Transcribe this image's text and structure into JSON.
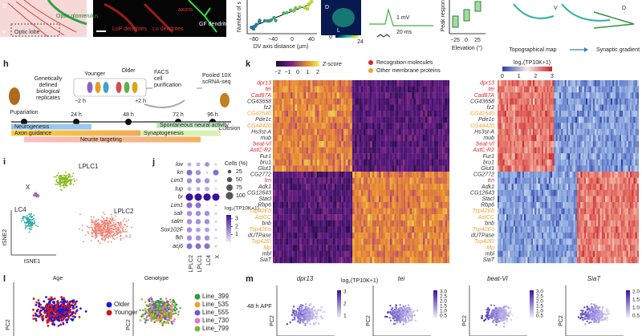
{
  "top": {
    "a": {
      "labels": [
        "D",
        "V",
        "Optic lobe",
        "Optic glomerulus"
      ]
    },
    "b": {
      "labels": [
        "LoP dendrites",
        "Lo dendrites",
        "GF dendrites",
        "axons"
      ]
    },
    "c": {
      "ylabel": "Number of s",
      "xlabel": "DV axis distance (µm)",
      "xticks": [
        "−80",
        "−40",
        "0",
        "40"
      ]
    },
    "d": {
      "labels": [
        "D",
        "L"
      ],
      "scale": [
        "0",
        "24"
      ]
    },
    "e": {
      "scale": [
        "1 mV",
        "20 ms"
      ]
    },
    "f": {
      "ylabel": "Peak respons",
      "xticks": [
        "−25",
        "0",
        "25"
      ],
      "xlabel": "Elevation (°)"
    },
    "g": {
      "labels": [
        "V",
        "D"
      ],
      "captions": [
        "Topographical map",
        "Synaptic gradient"
      ]
    }
  },
  "h": {
    "letter": "h",
    "replicates": [
      "Genetically",
      "defined",
      "biological",
      "replicates"
    ],
    "younger": "Younger",
    "older": "Older",
    "minus": "−2 h",
    "plus": "+2 h",
    "facs": [
      "FACS",
      "cell",
      "purification"
    ],
    "pooled": [
      "Pooled 10X",
      "scRNA-seq"
    ],
    "timeline": [
      "Pupariation",
      "24 h",
      "48 h",
      "72 h",
      "96 h"
    ],
    "eclosion": "Eclosion",
    "phases": [
      "Neurogenesis",
      "Axon guidance",
      "Spontaneous neural activity",
      "Synaptogenesis",
      "Neurite targeting"
    ]
  },
  "i": {
    "letter": "i",
    "clusters": [
      "LPLC1",
      "LPLC2",
      "X",
      "LC4"
    ],
    "ylabel": "tSNE2",
    "xlabel": "tSNE1"
  },
  "j": {
    "letter": "j",
    "genes": [
      "lov",
      "kn",
      "Lim3",
      "tup",
      "br",
      "Lim1",
      "salr",
      "salm",
      "Sox102F",
      "fkh",
      "acj6"
    ],
    "columns": [
      "LPLC2",
      "LPLC1",
      "LC4",
      "X"
    ],
    "size_title": "Cells (%)",
    "size_ticks": [
      25,
      50,
      75,
      100
    ],
    "color_title": "log₂(TP10K+1)",
    "color_ticks": [
      3,
      2,
      1
    ],
    "dots": [
      [
        [
          30,
          1
        ],
        [
          30,
          1
        ],
        [
          40,
          1.5
        ],
        [
          10,
          0.5
        ]
      ],
      [
        [
          60,
          2
        ],
        [
          50,
          1.5
        ],
        [
          10,
          0.5
        ],
        [
          60,
          2
        ]
      ],
      [
        [
          50,
          1.5
        ],
        [
          50,
          1.5
        ],
        [
          50,
          1.5
        ],
        [
          10,
          0.5
        ]
      ],
      [
        [
          30,
          1
        ],
        [
          30,
          1
        ],
        [
          40,
          1
        ],
        [
          10,
          0.3
        ]
      ],
      [
        [
          100,
          3.5
        ],
        [
          100,
          3.5
        ],
        [
          100,
          3.5
        ],
        [
          100,
          3.5
        ]
      ],
      [
        [
          60,
          2
        ],
        [
          60,
          2
        ],
        [
          5,
          0.3
        ],
        [
          10,
          0.5
        ]
      ],
      [
        [
          50,
          1.5
        ],
        [
          50,
          1.5
        ],
        [
          50,
          1.5
        ],
        [
          10,
          0.5
        ]
      ],
      [
        [
          50,
          1.5
        ],
        [
          50,
          1.5
        ],
        [
          50,
          1.5
        ],
        [
          10,
          0.5
        ]
      ],
      [
        [
          50,
          1.5
        ],
        [
          40,
          1.2
        ],
        [
          40,
          1.2
        ],
        [
          10,
          0.5
        ]
      ],
      [
        [
          50,
          1.5
        ],
        [
          50,
          1.5
        ],
        [
          50,
          1.5
        ],
        [
          10,
          0.5
        ]
      ],
      [
        [
          60,
          2
        ],
        [
          60,
          2
        ],
        [
          60,
          2
        ],
        [
          10,
          0.5
        ]
      ]
    ]
  },
  "k": {
    "letter": "k",
    "zscore_title": "Z-score",
    "zscore_ticks": [
      "−2",
      "−1",
      "0",
      "1",
      "2"
    ],
    "legend": [
      {
        "name": "Recognition molecules",
        "color": "#d62728"
      },
      {
        "name": "Other membrane proteins",
        "color": "#f0a030"
      }
    ],
    "log_title": "log₂(TP10K+1)",
    "log_ticks": [
      0,
      1,
      2,
      3
    ],
    "genes": [
      {
        "name": "dpr13",
        "color": "#d62728"
      },
      {
        "name": "tei",
        "color": "#d62728"
      },
      {
        "name": "Cad87A",
        "color": "#d62728"
      },
      {
        "name": "CG43658",
        "color": "#333333"
      },
      {
        "name": "fz2",
        "color": "#333333"
      },
      {
        "name": "CG42540",
        "color": "#f0a030"
      },
      {
        "name": "Pde1c",
        "color": "#333333"
      },
      {
        "name": "CG44420",
        "color": "#f0a030"
      },
      {
        "name": "Hs3st-A",
        "color": "#333333"
      },
      {
        "name": "mub",
        "color": "#333333"
      },
      {
        "name": "beat-VI",
        "color": "#d62728"
      },
      {
        "name": "AstC-R2",
        "color": "#d62728"
      },
      {
        "name": "Fur1",
        "color": "#333333"
      },
      {
        "name": "bru1",
        "color": "#333333"
      },
      {
        "name": "Glut1",
        "color": "#333333"
      },
      {
        "name": "CG2772",
        "color": "#333333"
      },
      {
        "name": "trn",
        "color": "#d62728"
      },
      {
        "name": "Adk1",
        "color": "#333333"
      },
      {
        "name": "CG12643",
        "color": "#333333"
      },
      {
        "name": "Stacl",
        "color": "#333333"
      },
      {
        "name": "Rbp6",
        "color": "#333333"
      },
      {
        "name": "Tsp42Eb",
        "color": "#f0a030"
      },
      {
        "name": "AstCC",
        "color": "#f0a030"
      },
      {
        "name": "bnb",
        "color": "#333333"
      },
      {
        "name": "Tsp42Eo",
        "color": "#f0a030"
      },
      {
        "name": "dUTPase",
        "color": "#333333"
      },
      {
        "name": "Tsp42Ei",
        "color": "#f0a030"
      },
      {
        "name": "Mp",
        "color": "#f0a030"
      },
      {
        "name": "mbl",
        "color": "#333333"
      },
      {
        "name": "SiaT",
        "color": "#333333"
      }
    ]
  },
  "l": {
    "letter": "l",
    "age": {
      "title": "Age",
      "ylabel": "PC2",
      "legend": [
        {
          "name": "Older",
          "color": "#1a1ad0"
        },
        {
          "name": "Younger",
          "color": "#d01818"
        }
      ]
    },
    "genotype": {
      "title": "Genotype",
      "ylabel": "PC2",
      "legend": [
        {
          "name": "Line_399",
          "color": "#2ca02c"
        },
        {
          "name": "Line_535",
          "color": "#f0a030"
        },
        {
          "name": "Line_555",
          "color": "#6a5acd"
        },
        {
          "name": "Line_730",
          "color": "#e377c2"
        },
        {
          "name": "Line_799",
          "color": "#7cb342"
        }
      ]
    }
  },
  "m": {
    "letter": "m",
    "row_label": "48 h APF",
    "cbar_title": "log₂(TP10K+1)",
    "plots": [
      {
        "gene": "dpr13",
        "ylabel": "PC2",
        "ticks": [
          "3",
          "2",
          "1"
        ]
      },
      {
        "gene": "tei",
        "ylabel": "PC2",
        "ticks": [
          "3.0",
          "2.5",
          "2.0",
          "1.5",
          "1.0",
          "0.5"
        ]
      },
      {
        "gene": "beat-VI",
        "ylabel": "PC2",
        "ticks": [
          "3.0",
          "2.5",
          "2.0",
          "1.5",
          "1.0",
          "0.5"
        ]
      },
      {
        "gene": "SiaT",
        "ylabel": "PC2",
        "ticks": [
          "2.0",
          "1.5",
          "1.0",
          "0.5"
        ]
      }
    ]
  }
}
